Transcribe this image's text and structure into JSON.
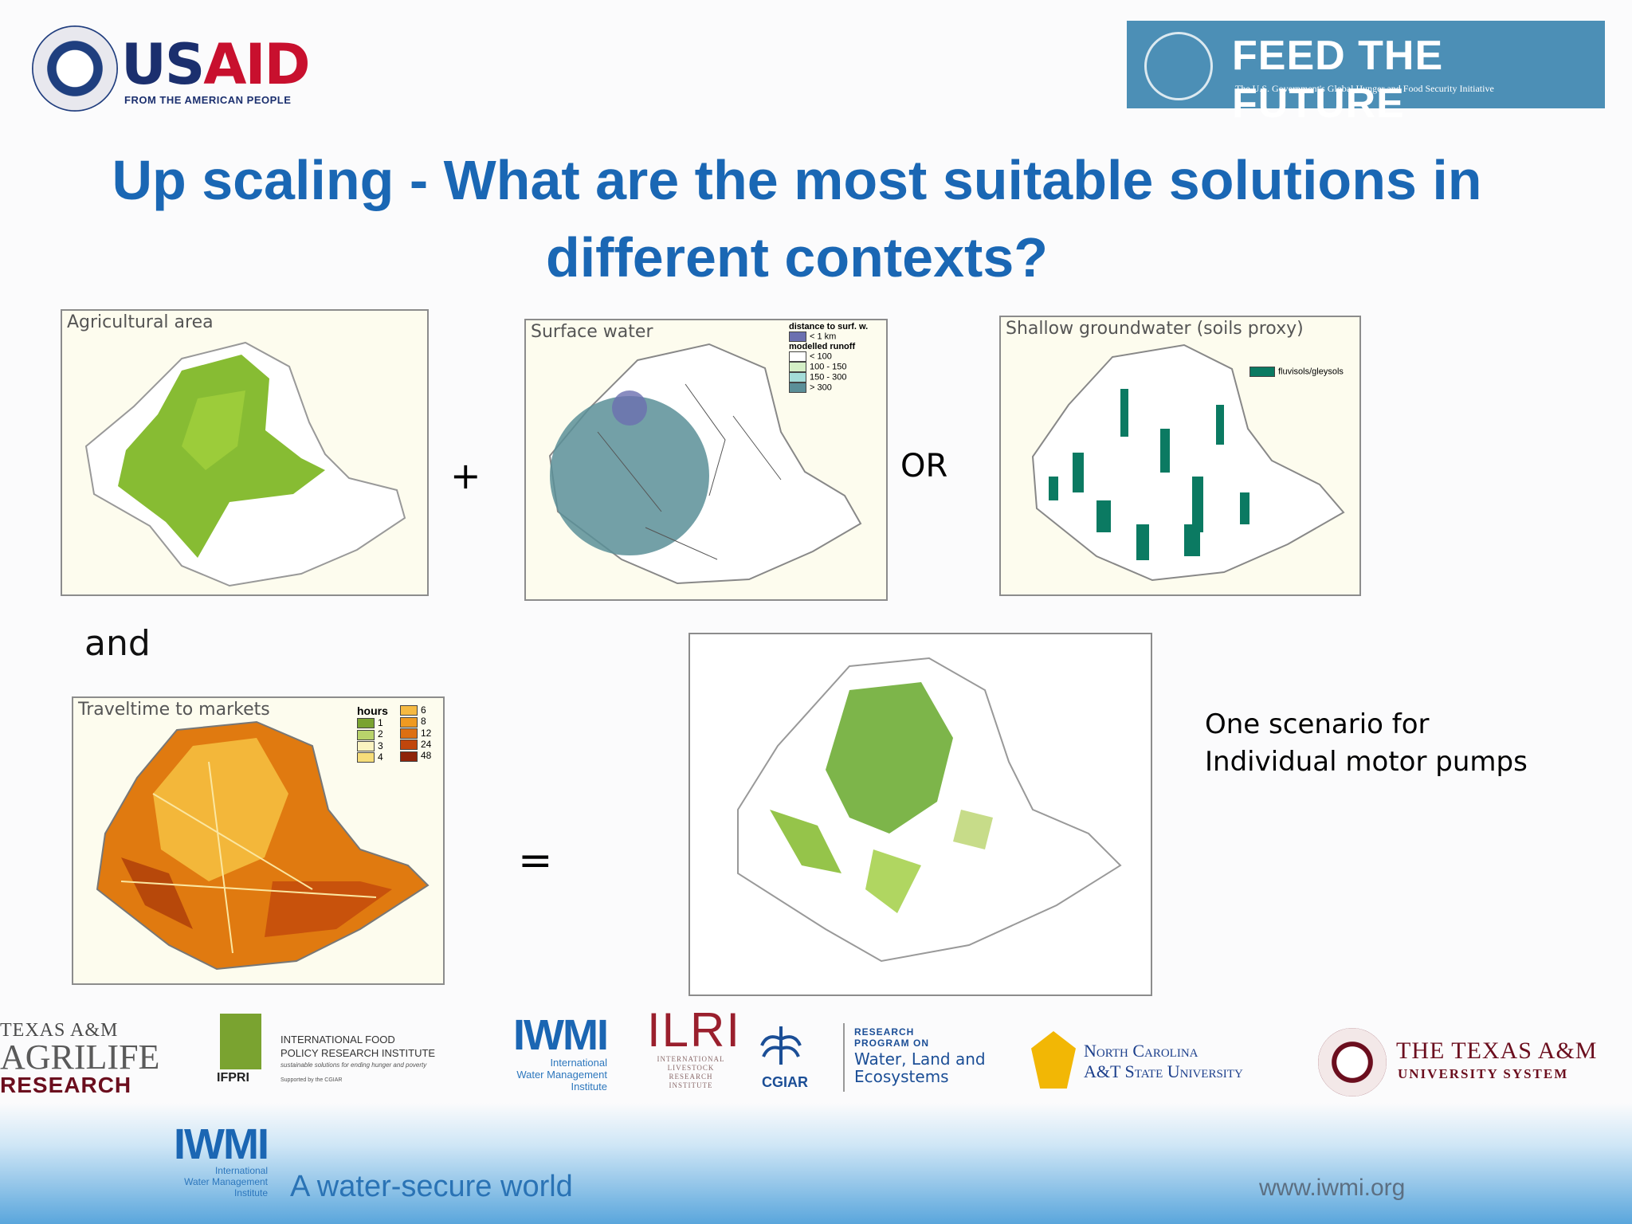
{
  "header": {
    "usaid": {
      "name_us": "US",
      "name_aid": "AID",
      "tagline": "FROM THE AMERICAN PEOPLE"
    },
    "feed_the_future": {
      "title": "FEED THE FUTURE",
      "tagline": "The U.S. Government's Global Hunger and Food Security Initiative"
    }
  },
  "slide": {
    "title_line1": "Up scaling - What are the most suitable solutions in",
    "title_line2": "different contexts?"
  },
  "maps": {
    "agricultural": {
      "title": "Agricultural area"
    },
    "surface_water": {
      "title": "Surface water",
      "legend_title_distance": "distance to surf. w.",
      "legend_distance_item": "< 1 km",
      "legend_title_runoff": "modelled runoff",
      "legend_runoff_items": [
        "< 100",
        "100 - 150",
        "150 - 300",
        "> 300"
      ]
    },
    "groundwater": {
      "title": "Shallow groundwater (soils proxy)",
      "legend_item": "fluvisols/gleysols"
    },
    "travel": {
      "title": "Traveltime to markets",
      "legend_title": "hours",
      "legend_left": [
        "1",
        "2",
        "3",
        "4"
      ],
      "legend_right": [
        "6",
        "8",
        "12",
        "24",
        "48"
      ]
    },
    "result": {}
  },
  "operators": {
    "plus": "+",
    "or": "OR",
    "and": "and",
    "equals": "="
  },
  "scenario": {
    "line1": "One scenario for",
    "line2": "Individual motor pumps"
  },
  "partners": {
    "tamu_agrilife": {
      "line1": "TEXAS A&M",
      "line2": "AGRILIFE",
      "line3": "RESEARCH"
    },
    "ifpri": {
      "abbr": "IFPRI",
      "name_line1": "INTERNATIONAL FOOD",
      "name_line2": "POLICY RESEARCH INSTITUTE",
      "sub": "sustainable solutions for ending hunger and poverty",
      "supported": "Supported by the CGIAR"
    },
    "iwmi": {
      "abbr": "IWMI",
      "line1": "International",
      "line2": "Water Management",
      "line3": "Institute"
    },
    "ilri": {
      "abbr": "ILRI",
      "line1": "INTERNATIONAL",
      "line2": "LIVESTOCK RESEARCH",
      "line3": "INSTITUTE"
    },
    "cgiar": {
      "abbr": "CGIAR",
      "rp_line1": "RESEARCH",
      "rp_line2": "PROGRAM ON",
      "wle_line1": "Water, Land and",
      "wle_line2": "Ecosystems"
    },
    "ncat": {
      "line1": "North Carolina",
      "line2": "A&T State University"
    },
    "tamus": {
      "line1": "THE TEXAS A&M",
      "line2": "UNIVERSITY SYSTEM"
    }
  },
  "footer": {
    "iwmi": {
      "abbr": "IWMI",
      "line1": "International",
      "line2": "Water Management",
      "line3": "Institute"
    },
    "tagline": "A water-secure world",
    "url": "www.iwmi.org"
  },
  "colors": {
    "title_blue": "#1a67b4",
    "usaid_blue": "#1b2f6e",
    "usaid_red": "#c8102e",
    "ftf_blue": "#4c8fb6",
    "agri_green": "#7ab51d",
    "groundwater_teal": "#0b7a62",
    "water_teal": "#5b8f98"
  }
}
